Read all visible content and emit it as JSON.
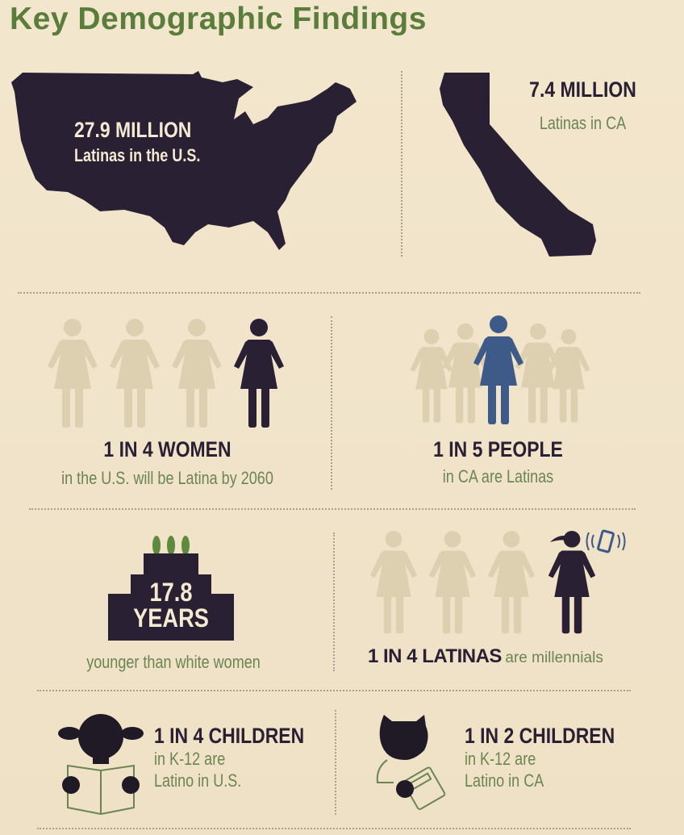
{
  "title": "Key Demographic Findings",
  "colors": {
    "title_green": "#5b7d3b",
    "dark": "#2a2033",
    "muted_figure": "#ddd0b0",
    "highlight_blue": "#3e5a88",
    "text_green": "#6b8552",
    "background": "#f0e3c9"
  },
  "us": {
    "value": "27.9 MILLION",
    "label": "Latinas in the U.S.",
    "icon": "us-map-icon"
  },
  "ca": {
    "value": "7.4 MILLION",
    "label": "Latinas in CA",
    "icon": "california-map-icon"
  },
  "women_us": {
    "value": "1 IN 4 WOMEN",
    "label": "in the U.S. will be Latina by 2060",
    "highlighted": 1,
    "total": 4
  },
  "people_ca": {
    "value": "1 IN 5 PEOPLE",
    "label": "in CA are Latinas",
    "highlighted": 1,
    "total": 5
  },
  "age": {
    "value": "17.8",
    "unit": "YEARS",
    "label": "younger than white women",
    "icon": "birthday-cake-icon"
  },
  "millennials": {
    "value": "1 IN 4 LATINAS",
    "label": "are millennials",
    "highlighted": 1,
    "total": 4
  },
  "children_us": {
    "value": "1 IN 4 CHILDREN",
    "line1": "in K-12 are",
    "line2": "Latino in U.S.",
    "icon": "child-reading-icon"
  },
  "children_ca": {
    "value": "1 IN 2 CHILDREN",
    "line1": "in K-12 are",
    "line2": "Latino in CA",
    "icon": "child-calculator-icon"
  }
}
